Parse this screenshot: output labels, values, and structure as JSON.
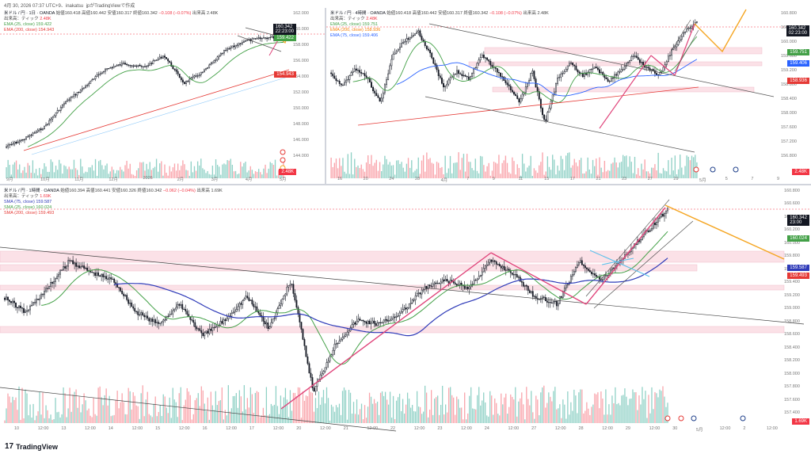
{
  "header": {
    "text": "4月 30, 2026 07:37 UTC+9、inakatsu_jpがTradingViewで作成"
  },
  "footer": {
    "brand": "TradingView",
    "logo": "17"
  },
  "colors": {
    "up": "#089981",
    "down": "#f23645",
    "sma25": "#43a047",
    "sma75": "#2e3ab8",
    "ma200": "#e53935",
    "ema75": "#2962ff",
    "zone": "#f8c9d4",
    "trend_pink": "#e0457b",
    "proj_orange": "#f5a623",
    "channel_blue": "#5bc0eb",
    "grey_line": "#555555"
  },
  "panes": {
    "daily": {
      "legend": {
        "symbol": "米ドル / 円 · 1日 · OANDA",
        "open": "始値160.418",
        "high": "高値160.442",
        "low": "安値160.317",
        "close": "終値160.342",
        "change": "−0.108 (−0.07%)",
        "vol_label": "出来高",
        "vol": "2.48K",
        "tick": "出来高：ティック",
        "tick_val": "2.48K",
        "ema25": "EMA (25, close)",
        "ema25_val": "159.422",
        "ema200": "EMA (200, close)",
        "ema200_val": "154.943"
      },
      "price_last": "160.342",
      "price_sub": "22:23:00",
      "ema25_tag": "159.422",
      "ema200_tag": "154.943",
      "vol_tag": "2.48K",
      "y_ticks": [
        "162.000",
        "160.000",
        "158.000",
        "156.000",
        "154.000",
        "152.000",
        "150.000",
        "148.000",
        "146.000",
        "144.000"
      ],
      "x_ticks": [
        "9月",
        "10月",
        "11月",
        "12月",
        "2026",
        "2月",
        "3月",
        "4月",
        "5月"
      ]
    },
    "h4": {
      "legend": {
        "symbol": "米ドル / 円 · 4時間 · OANDA",
        "open": "始値160.418",
        "high": "高値160.442",
        "low": "安値160.317",
        "close": "終値160.342",
        "change": "−0.108 (−0.07%)",
        "vol_label": "出来高",
        "vol": "2.48K",
        "tick": "出来高：ティック",
        "tick_val": "2.48K",
        "ema25": "EMA (25, close)",
        "ema25_val": "159.751",
        "ema100": "EMA (200, close)",
        "ema100_val": "158.936",
        "ema75": "EMA (75, close)",
        "ema75_val": "159.406"
      },
      "price_last": "160.342",
      "price_sub": "02:23:00",
      "tag1": "159.751",
      "tag2": "159.406",
      "tag3": "158.936",
      "vol_tag": "2.48K",
      "y_ticks": [
        "160.800",
        "160.400",
        "160.000",
        "159.600",
        "159.200",
        "158.800",
        "158.400",
        "158.000",
        "157.600",
        "157.200",
        "156.800"
      ],
      "x_ticks": [
        "16",
        "20",
        "24",
        "28",
        "4月",
        "7",
        "9",
        "11",
        "15",
        "17",
        "21",
        "23",
        "27",
        "29",
        "5月",
        "5",
        "7",
        "9"
      ]
    },
    "h1": {
      "legend": {
        "symbol": "米ドル / 円 · 1時間 · OANDA",
        "open": "始値160.394",
        "high": "高値160.441",
        "low": "安値160.326",
        "close": "終値160.342",
        "change": "−0.062 (−0.04%)",
        "vol_label": "出来高",
        "vol": "1.69K",
        "tick": "出来高：ティック",
        "tick_val": "1.69K",
        "sma75": "SMA (75, close)",
        "sma75_val": "159.587",
        "sma25": "SMA (25, close)",
        "sma25_val": "160.024",
        "sma200": "SMA (200, close)",
        "sma200_val": "159.493"
      },
      "price_last": "160.342",
      "price_sub": "23:00",
      "tag1": "160.024",
      "tag2": "159.587",
      "tag3": "159.493",
      "vol_tag": "1.69K",
      "y_ticks": [
        "160.800",
        "160.600",
        "160.400",
        "160.200",
        "160.000",
        "159.800",
        "159.600",
        "159.400",
        "159.200",
        "159.000",
        "158.800",
        "158.600",
        "158.400",
        "158.200",
        "158.000",
        "157.800",
        "157.600",
        "157.400"
      ],
      "x_ticks": [
        "10",
        "12:00",
        "13",
        "12:00",
        "14",
        "12:00",
        "15",
        "12:00",
        "16",
        "12:00",
        "17",
        "12:00",
        "20",
        "12:00",
        "21",
        "12:00",
        "22",
        "12:00",
        "23",
        "12:00",
        "24",
        "12:00",
        "27",
        "12:00",
        "28",
        "12:00",
        "29",
        "12:00",
        "30",
        "5月",
        "12:00",
        "2",
        "12:00"
      ]
    }
  },
  "chart_data": [
    {
      "type": "candlestick",
      "title": "",
      "timeframe": "1日",
      "symbol": "米ドル / 円",
      "ylim": [
        143.5,
        163
      ],
      "series": [
        {
          "name": "EMA (25, close)",
          "last": 159.422
        },
        {
          "name": "EMA (200, close)",
          "last": 154.943
        }
      ]
    },
    {
      "type": "candlestick",
      "title": "",
      "timeframe": "4時間",
      "symbol": "米ドル / 円",
      "ylim": [
        156.5,
        161.2
      ],
      "series": [
        {
          "name": "EMA (25, close)",
          "last": 159.751
        },
        {
          "name": "EMA (75, close)",
          "last": 159.406
        },
        {
          "name": "EMA (200, close)",
          "last": 158.936
        }
      ]
    },
    {
      "type": "candlestick",
      "title": "",
      "timeframe": "1時間",
      "symbol": "米ドル / 円",
      "ylim": [
        157.2,
        160.95
      ],
      "series": [
        {
          "name": "SMA (25, close)",
          "last": 160.024
        },
        {
          "name": "SMA (75, close)",
          "last": 159.587
        },
        {
          "name": "SMA (200, close)",
          "last": 159.493
        }
      ]
    }
  ]
}
